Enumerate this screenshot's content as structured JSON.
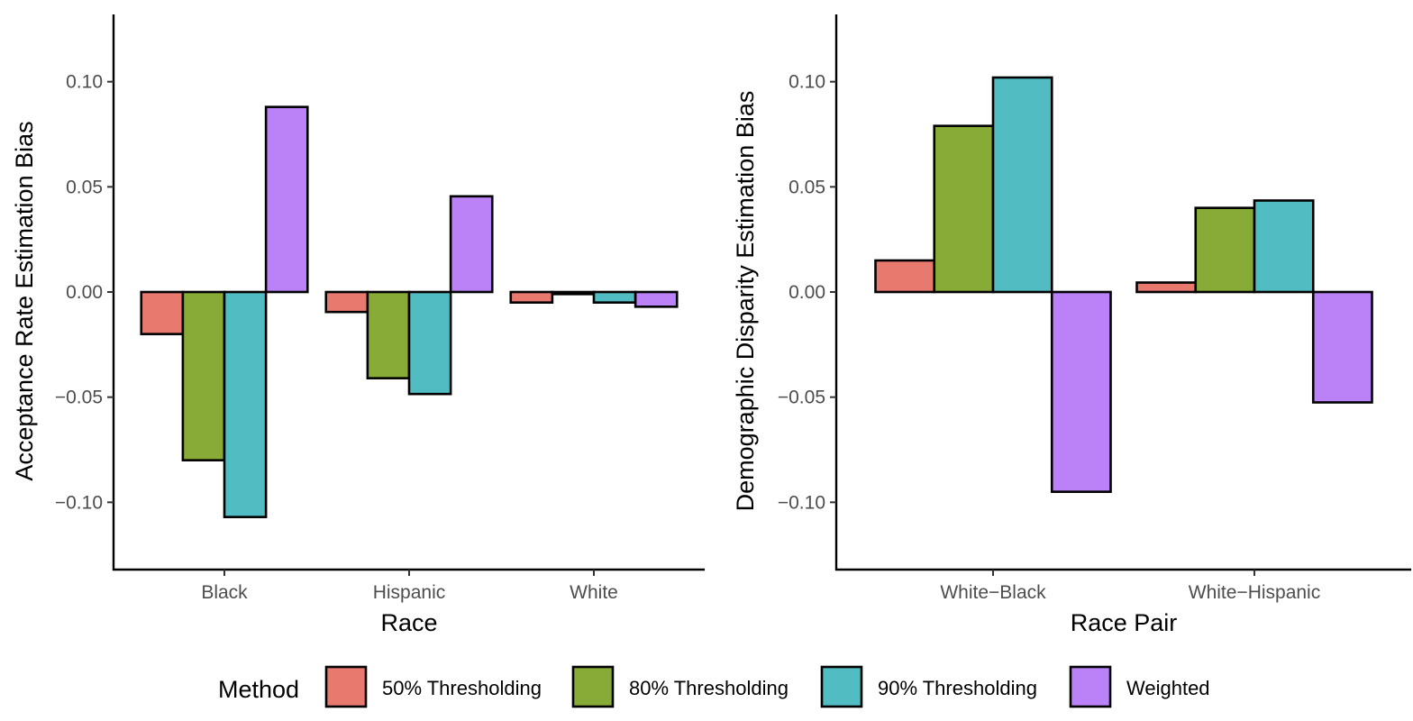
{
  "legend": {
    "title": "Method",
    "items": [
      {
        "label": "50% Thresholding",
        "color": "#E8796F"
      },
      {
        "label": "80% Thresholding",
        "color": "#87AB36"
      },
      {
        "label": "90% Thresholding",
        "color": "#52BCC3"
      },
      {
        "label": "Weighted",
        "color": "#BB82F8"
      }
    ]
  },
  "chart_data": [
    {
      "type": "bar",
      "xlabel": "Race",
      "ylabel": "Acceptance Rate Estimation Bias",
      "categories": [
        "Black",
        "Hispanic",
        "White"
      ],
      "ylim": [
        -0.132,
        0.132
      ],
      "yticks": [
        -0.1,
        -0.05,
        0.0,
        0.05,
        0.1
      ],
      "ytick_labels": [
        "−0.10",
        "−0.05",
        "0.00",
        "0.05",
        "0.10"
      ],
      "grid": false,
      "legend_position": "bottom",
      "series": [
        {
          "name": "50% Thresholding",
          "values": [
            -0.02,
            -0.0095,
            -0.005
          ]
        },
        {
          "name": "80% Thresholding",
          "values": [
            -0.08,
            -0.041,
            -0.001
          ]
        },
        {
          "name": "90% Thresholding",
          "values": [
            -0.107,
            -0.0485,
            -0.005
          ]
        },
        {
          "name": "Weighted",
          "values": [
            0.088,
            0.0455,
            -0.007
          ]
        }
      ]
    },
    {
      "type": "bar",
      "xlabel": "Race Pair",
      "ylabel": "Demographic Disparity Estimation Bias",
      "categories": [
        "White−Black",
        "White−Hispanic"
      ],
      "ylim": [
        -0.132,
        0.132
      ],
      "yticks": [
        -0.1,
        -0.05,
        0.0,
        0.05,
        0.1
      ],
      "ytick_labels": [
        "−0.10",
        "−0.05",
        "0.00",
        "0.05",
        "0.10"
      ],
      "grid": false,
      "legend_position": "bottom",
      "series": [
        {
          "name": "50% Thresholding",
          "values": [
            0.015,
            0.0045
          ]
        },
        {
          "name": "80% Thresholding",
          "values": [
            0.079,
            0.04
          ]
        },
        {
          "name": "90% Thresholding",
          "values": [
            0.102,
            0.0435
          ]
        },
        {
          "name": "Weighted",
          "values": [
            -0.095,
            -0.0525
          ]
        }
      ]
    }
  ]
}
